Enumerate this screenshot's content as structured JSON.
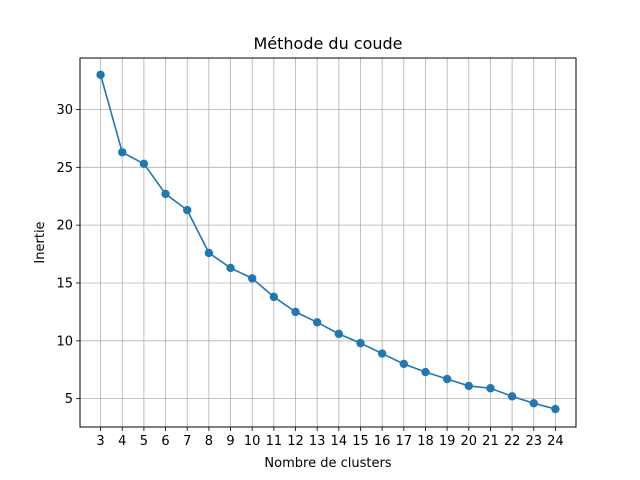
{
  "chart_data": {
    "type": "line",
    "title": "Méthode du coude",
    "xlabel": "Nombre de clusters",
    "ylabel": "Inertie",
    "x": [
      3,
      4,
      5,
      6,
      7,
      8,
      9,
      10,
      11,
      12,
      13,
      14,
      15,
      16,
      17,
      18,
      19,
      20,
      21,
      22,
      23,
      24
    ],
    "y": [
      33.0,
      26.3,
      25.3,
      22.7,
      21.3,
      17.6,
      16.3,
      15.4,
      13.8,
      12.5,
      11.6,
      10.6,
      9.8,
      8.9,
      8.0,
      7.3,
      6.7,
      6.1,
      5.9,
      5.2,
      4.6,
      4.1
    ],
    "xlim": [
      2.05,
      24.95
    ],
    "ylim": [
      2.55,
      34.45
    ],
    "xticks": [
      "3",
      "4",
      "5",
      "6",
      "7",
      "8",
      "9",
      "10",
      "11",
      "12",
      "13",
      "14",
      "15",
      "16",
      "17",
      "18",
      "19",
      "20",
      "21",
      "22",
      "23",
      "24"
    ],
    "yticks": [
      "5",
      "10",
      "15",
      "20",
      "25",
      "30"
    ],
    "grid": true,
    "line_color": "#1f77b4",
    "marker": "circle"
  }
}
